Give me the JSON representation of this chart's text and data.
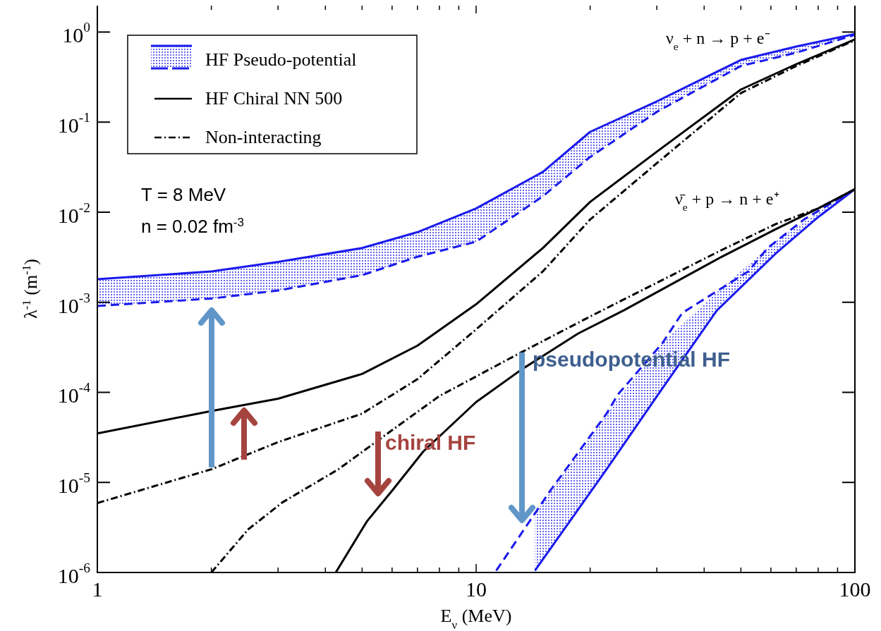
{
  "chart_data": {
    "type": "line",
    "xlabel": "E$_{ν}$ (MeV)",
    "ylabel": "λ$^{-1}$ (m$^{-1}$)",
    "log": "xy",
    "legend": "top left",
    "xlim": [
      1,
      100
    ],
    "xticks": [
      1,
      {
        "value": 2,
        "label": null
      },
      {
        "value": 3,
        "label": null
      },
      {
        "value": 4,
        "label": null
      },
      {
        "value": 5,
        "label": null
      },
      {
        "value": 6,
        "label": null
      },
      {
        "value": 7,
        "label": null
      },
      {
        "value": 8,
        "label": null
      },
      {
        "value": 9,
        "label": null
      },
      10,
      {
        "value": 20,
        "label": null
      },
      {
        "value": 30,
        "label": null
      },
      {
        "value": 40,
        "label": null
      },
      {
        "value": 50,
        "label": null
      },
      {
        "value": 60,
        "label": null
      },
      {
        "value": 70,
        "label": null
      },
      {
        "value": 80,
        "label": null
      },
      {
        "value": 90,
        "label": null
      },
      100
    ],
    "ylim": [
      1e-06,
      2
    ],
    "yticks": [
      {
        "value": 1e-06,
        "label": "10$^{-6}$"
      },
      {
        "value": 1e-05,
        "label": "10$^{-5}$"
      },
      {
        "value": 0.0001,
        "label": "10$^{-4}$"
      },
      {
        "value": 0.001,
        "label": "10$^{-3}$"
      },
      {
        "value": 0.01,
        "label": "10$^{-2}$"
      },
      {
        "value": 0.1,
        "label": "10$^{-1}$"
      },
      {
        "value": 1,
        "label": "10$^{0}$"
      }
    ],
    "series": [
      {
        "name": "HF Pseudo-potential",
        "color": "#1a1aee",
        "line_style": "solid",
        "x": [
          1,
          2,
          3,
          5,
          7,
          10,
          15,
          20,
          30,
          50,
          70,
          100
        ],
        "values": [
          0.0018,
          0.0022,
          0.0028,
          0.004,
          0.006,
          0.011,
          0.028,
          0.078,
          0.17,
          0.49,
          0.69,
          0.95
        ],
        "lower": [
          0.00091,
          0.0011,
          0.00135,
          0.002,
          0.0032,
          0.0047,
          0.015,
          0.041,
          0.13,
          0.42,
          0.59,
          0.93
        ],
        "upper": [
          0.0018,
          0.0022,
          0.0028,
          0.004,
          0.006,
          0.011,
          0.028,
          0.078,
          0.17,
          0.49,
          0.69,
          0.95
        ]
      },
      {
        "color": "#1a1aee",
        "line_style": "dashed",
        "x": [
          1,
          2,
          3,
          5,
          7,
          10,
          15,
          20,
          30,
          50,
          70,
          100
        ],
        "values": [
          0.00091,
          0.0011,
          0.00135,
          0.002,
          0.0032,
          0.0047,
          0.015,
          0.041,
          0.13,
          0.42,
          0.59,
          0.93
        ]
      },
      {
        "name": "HF Chiral NN 500",
        "color": "#000000",
        "line_style": "solid",
        "x": [
          1,
          2,
          3,
          5,
          7,
          10,
          15,
          20,
          30,
          50,
          70,
          100
        ],
        "values": [
          3.5e-05,
          6.2e-05,
          8.5e-05,
          0.00016,
          0.00033,
          0.00095,
          0.004,
          0.013,
          0.047,
          0.23,
          0.44,
          0.83
        ]
      },
      {
        "name": "Non-interacting",
        "color": "#000000",
        "line_style": "dashdot",
        "x": [
          1,
          2,
          3,
          5,
          7,
          10,
          15,
          20,
          30,
          50,
          70,
          100
        ],
        "values": [
          5.9e-06,
          1.4e-05,
          2.8e-05,
          5.8e-05,
          0.00014,
          0.0005,
          0.0022,
          0.0083,
          0.035,
          0.21,
          0.42,
          0.81
        ]
      },
      {
        "color": "#1a1aee",
        "line_style": "solid",
        "x": [
          14.3,
          22.1,
          31,
          43.2,
          61.9,
          80.2,
          100
        ],
        "values": [
          1.05e-06,
          1.4e-05,
          0.00011,
          0.00081,
          0.0035,
          0.0089,
          0.018
        ],
        "lower": [
          1.05e-06,
          1.4e-05,
          0.00011,
          0.00081,
          0.0035,
          0.0089,
          0.018
        ],
        "upper": [
          4.5e-06,
          5.8e-05,
          0.00035,
          0.0013,
          0.0048,
          0.01,
          0.018
        ]
      },
      {
        "color": "#1a1aee",
        "line_style": "dashed",
        "x": [
          11.3,
          15.7,
          22.1,
          23.7,
          31,
          35,
          52.3,
          58.8,
          73.4,
          100
        ],
        "values": [
          1.05e-06,
          8.1e-06,
          5.8e-05,
          9.5e-05,
          0.00035,
          0.00076,
          0.0022,
          0.004,
          0.0083,
          0.018
        ]
      },
      {
        "color": "#000000",
        "line_style": "solid",
        "x": [
          4.26,
          5.15,
          6,
          7.25,
          10,
          13.2,
          18.6,
          24.5,
          43.9,
          61.9,
          80,
          100
        ],
        "values": [
          1e-06,
          3.7e-06,
          8.1e-06,
          2.2e-05,
          7.8e-05,
          0.00018,
          0.00045,
          0.00081,
          0.0031,
          0.0065,
          0.011,
          0.018
        ]
      },
      {
        "color": "#000000",
        "line_style": "dashdot",
        "x": [
          2,
          2.5,
          3.08,
          4.33,
          6.1,
          8,
          13.2,
          20.2,
          43.9,
          61.9,
          80,
          100
        ],
        "values": [
          1e-06,
          3e-06,
          6e-06,
          1.4e-05,
          4e-05,
          9.1e-05,
          0.00028,
          0.00071,
          0.0037,
          0.0074,
          0.011,
          0.018
        ]
      }
    ],
    "annotations": [
      "T = 8 MeV",
      "n = 0.02 fm$^{-3}$",
      "ν$_{e}$ + n → p + e⁻",
      "ν̄$_{e}$ + p → n + e⁺",
      "chiral HF",
      "pseudopotential HF"
    ]
  }
}
